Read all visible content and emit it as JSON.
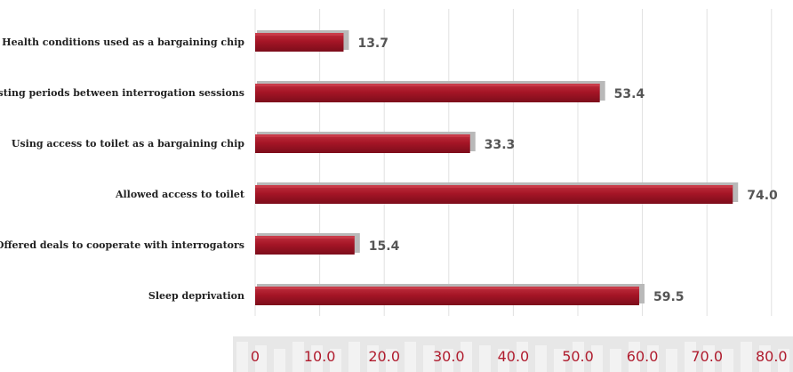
{
  "chart_data": {
    "type": "bar",
    "orientation": "horizontal",
    "title": "",
    "xlabel": "",
    "ylabel": "",
    "categories": [
      "Health conditions used as a bargaining chip",
      "Resting periods between interrogation sessions",
      "Using access to toilet as a bargaining chip",
      "Allowed access to toilet",
      "Offered deals to cooperate with interrogators",
      "Sleep deprivation"
    ],
    "values": [
      13.7,
      53.4,
      33.3,
      74.0,
      15.4,
      59.5
    ],
    "value_labels": [
      "13.7",
      "53.4",
      "33.3",
      "74.0",
      "15.4",
      "59.5"
    ],
    "xlim": [
      0,
      80
    ],
    "ticks": [
      "0",
      "10.0",
      "20.0",
      "30.0",
      "40.0",
      "50.0",
      "60.0",
      "70.0",
      "80.0"
    ],
    "tick_values": [
      0,
      10,
      20,
      30,
      40,
      50,
      60,
      70,
      80
    ],
    "grid": "vertical",
    "legend": "none",
    "colors": {
      "bar": "#a51526",
      "bar_dark": "#7c0d1b",
      "bar_light": "#d14654",
      "shadow": "#b9b9b9",
      "grid": "#e0e0e0",
      "tick_text": "#b01c2e",
      "value_text": "#555555",
      "band": "#d4d4d4"
    }
  }
}
